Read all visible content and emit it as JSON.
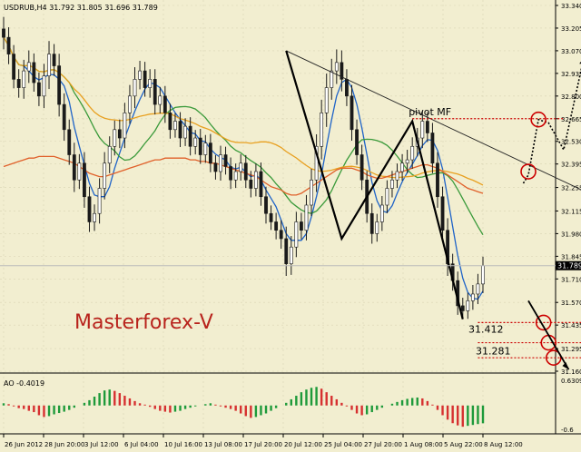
{
  "header": {
    "symbol_line": "USDRUB,H4  31.792 31.805 31.696 31.789"
  },
  "watermark": "Masterforex-V",
  "colors": {
    "background": "#f2eed0",
    "grid": "#d9d4b4",
    "bull": "#1a1a1a",
    "bear": "#1a1a1a",
    "ma_fast": "#1e63c8",
    "ma_mid": "#3a9a3a",
    "ma_slow": "#e8a020",
    "ma_long": "#e0602a",
    "wave": "#000000",
    "trendline": "#222222",
    "projection": "#cc0000",
    "circle": "#cc0000",
    "watermark": "#b8231c",
    "ao_up": "#1e9a3a",
    "ao_down": "#d63030",
    "price_tag": "#000000"
  },
  "chart_data": [
    {
      "type": "candlestick",
      "title": "USDRUB,H4",
      "ohlc_last": {
        "open": 31.792,
        "high": 31.805,
        "low": 31.696,
        "close": 31.789
      },
      "current_price_label": "31.789",
      "ylim": [
        31.16,
        33.34
      ],
      "y_ticks": [
        "33.340",
        "33.205",
        "33.070",
        "32.935",
        "32.800",
        "32.665",
        "32.530",
        "32.395",
        "32.255",
        "32.115",
        "31.980",
        "31.845",
        "31.710",
        "31.570",
        "31.435",
        "31.295",
        "31.160"
      ],
      "x_ticks": [
        "26 Jun 2012",
        "28 Jun 20:00",
        "3 Jul 12:00",
        "6 Jul 04:00",
        "10 Jul 16:00",
        "13 Jul 08:00",
        "17 Jul 20:00",
        "20 Jul 12:00",
        "25 Jul 04:00",
        "27 Jul 20:00",
        "1 Aug 08:00",
        "5 Aug 22:00",
        "8 Aug 12:00"
      ],
      "x_range": [
        "26 Jun 2012",
        "8 Aug 12:00"
      ],
      "grid": true,
      "closes": [
        33.15,
        33.05,
        32.9,
        32.85,
        32.95,
        33.0,
        32.88,
        32.8,
        32.92,
        33.05,
        32.98,
        32.75,
        32.6,
        32.45,
        32.3,
        32.4,
        32.2,
        32.05,
        32.1,
        32.25,
        32.4,
        32.5,
        32.6,
        32.55,
        32.7,
        32.8,
        32.9,
        32.95,
        32.85,
        32.9,
        32.75,
        32.8,
        32.7,
        32.6,
        32.65,
        32.55,
        32.62,
        32.5,
        32.55,
        32.45,
        32.52,
        32.4,
        32.35,
        32.45,
        32.38,
        32.3,
        32.35,
        32.4,
        32.3,
        32.25,
        32.35,
        32.2,
        32.1,
        32.05,
        32.0,
        31.95,
        31.8,
        31.9,
        32.05,
        32.0,
        32.15,
        32.3,
        32.5,
        32.7,
        32.85,
        32.95,
        33.0,
        32.9,
        32.8,
        32.6,
        32.45,
        32.3,
        32.1,
        31.98,
        32.05,
        32.15,
        32.25,
        32.3,
        32.35,
        32.4,
        32.42,
        32.5,
        32.55,
        32.65,
        32.58,
        32.4,
        32.2,
        32.0,
        31.8,
        31.7,
        31.55,
        31.52,
        31.58,
        31.62,
        31.68,
        31.789
      ],
      "wicks": [
        0.12,
        0.1,
        0.09,
        0.1,
        0.11,
        0.12,
        0.09,
        0.1,
        0.12,
        0.13,
        0.1,
        0.12,
        0.11,
        0.1,
        0.12,
        0.09,
        0.11,
        0.1,
        0.09,
        0.1,
        0.11,
        0.1,
        0.09,
        0.1,
        0.1,
        0.11,
        0.12,
        0.1,
        0.09,
        0.1,
        0.1,
        0.09,
        0.1,
        0.09,
        0.08,
        0.09,
        0.08,
        0.09,
        0.08,
        0.09,
        0.08,
        0.09,
        0.08,
        0.09,
        0.08,
        0.09,
        0.08,
        0.09,
        0.08,
        0.09,
        0.08,
        0.09,
        0.1,
        0.08,
        0.09,
        0.1,
        0.12,
        0.11,
        0.1,
        0.09,
        0.1,
        0.11,
        0.12,
        0.13,
        0.14,
        0.12,
        0.13,
        0.12,
        0.1,
        0.11,
        0.1,
        0.1,
        0.09,
        0.1,
        0.08,
        0.09,
        0.08,
        0.09,
        0.08,
        0.09,
        0.1,
        0.09,
        0.1,
        0.1,
        0.09,
        0.1,
        0.11,
        0.1,
        0.12,
        0.1,
        0.09,
        0.08,
        0.08,
        0.09,
        0.1,
        0.09
      ],
      "series": [
        {
          "name": "",
          "kind": "ma",
          "period": 5,
          "color_key": "ma_fast"
        },
        {
          "name": "",
          "kind": "ma",
          "period": 14,
          "color_key": "ma_mid"
        },
        {
          "name": "",
          "kind": "ma",
          "period": 34,
          "color_key": "ma_slow"
        },
        {
          "name": "",
          "kind": "ma_fixed",
          "color_key": "ma_long",
          "values": [
            32.38,
            32.39,
            32.4,
            32.41,
            32.42,
            32.43,
            32.43,
            32.44,
            32.44,
            32.44,
            32.44,
            32.43,
            32.42,
            32.41,
            32.4,
            32.38,
            32.36,
            32.34,
            32.33,
            32.32,
            32.32,
            32.33,
            32.34,
            32.35,
            32.36,
            32.37,
            32.38,
            32.39,
            32.4,
            32.41,
            32.42,
            32.42,
            32.43,
            32.43,
            32.43,
            32.43,
            32.43,
            32.42,
            32.42,
            32.41,
            32.41,
            32.4,
            32.4,
            32.39,
            32.38,
            32.37,
            32.36,
            32.35,
            32.34,
            32.33,
            32.32,
            32.3,
            32.28,
            32.26,
            32.25,
            32.24,
            32.22,
            32.21,
            32.21,
            32.22,
            32.24,
            32.26,
            32.28,
            32.3,
            32.32,
            32.34,
            32.36,
            32.37,
            32.37,
            32.37,
            32.36,
            32.35,
            32.33,
            32.32,
            32.31,
            32.31,
            32.32,
            32.33,
            32.34,
            32.35,
            32.36,
            32.37,
            32.38,
            32.39,
            32.39,
            32.38,
            32.37,
            32.35,
            32.33,
            32.31,
            32.29,
            32.27,
            32.25,
            32.24,
            32.23,
            32.22
          ]
        }
      ],
      "annotations": {
        "pivot_label": "pivot MF",
        "pivot_price": 32.665,
        "level_1": "31.412",
        "level_2": "31.281",
        "wave_points": [
          [
            56,
            33.07
          ],
          [
            67,
            31.95
          ],
          [
            81,
            32.65
          ],
          [
            91,
            31.47
          ]
        ],
        "trendline": [
          [
            56,
            33.07
          ],
          [
            116,
            32.22
          ]
        ],
        "projection_path": [
          [
            103,
            32.28
          ],
          [
            104,
            32.33
          ],
          [
            106,
            32.66
          ],
          [
            108,
            32.64
          ],
          [
            111,
            32.48
          ],
          [
            115,
            33.03
          ]
        ],
        "projection_circles": [
          [
            104,
            32.35
          ],
          [
            106,
            32.66
          ]
        ],
        "pivot_dotted_from": 81,
        "pivot_dotted_to": 111,
        "low_circles": [
          [
            107,
            31.45
          ],
          [
            108,
            31.33
          ],
          [
            109,
            31.24
          ]
        ],
        "low_dotted": [
          [
            94,
            117,
            31.45
          ],
          [
            94,
            118,
            31.33
          ],
          [
            94,
            119,
            31.24
          ]
        ],
        "down_arrow": [
          [
            104,
            31.58
          ],
          [
            112,
            31.17
          ]
        ]
      }
    },
    {
      "type": "bar",
      "title": "AO -0.4019",
      "ylim": [
        -0.6,
        0.6309
      ],
      "y_tick_top": "0.6309",
      "y_tick_bottom": "-0.6",
      "values": [
        0.05,
        0.03,
        -0.02,
        -0.06,
        -0.08,
        -0.12,
        -0.15,
        -0.22,
        -0.26,
        -0.24,
        -0.2,
        -0.17,
        -0.14,
        -0.1,
        -0.05,
        0.0,
        0.06,
        0.12,
        0.2,
        0.28,
        0.34,
        0.36,
        0.33,
        0.28,
        0.22,
        0.16,
        0.1,
        0.05,
        0.02,
        -0.03,
        -0.08,
        -0.12,
        -0.14,
        -0.16,
        -0.14,
        -0.12,
        -0.08,
        -0.05,
        -0.02,
        0.0,
        0.03,
        0.05,
        0.02,
        -0.02,
        -0.05,
        -0.08,
        -0.12,
        -0.18,
        -0.24,
        -0.28,
        -0.26,
        -0.22,
        -0.18,
        -0.12,
        -0.06,
        0.0,
        0.06,
        0.14,
        0.22,
        0.3,
        0.36,
        0.4,
        0.42,
        0.38,
        0.3,
        0.22,
        0.14,
        0.06,
        -0.02,
        -0.1,
        -0.18,
        -0.22,
        -0.2,
        -0.15,
        -0.1,
        -0.05,
        0.0,
        0.04,
        0.08,
        0.12,
        0.15,
        0.17,
        0.18,
        0.16,
        0.1,
        0.02,
        -0.1,
        -0.22,
        -0.32,
        -0.4,
        -0.45,
        -0.48,
        -0.46,
        -0.44,
        -0.42,
        -0.4019
      ]
    }
  ]
}
